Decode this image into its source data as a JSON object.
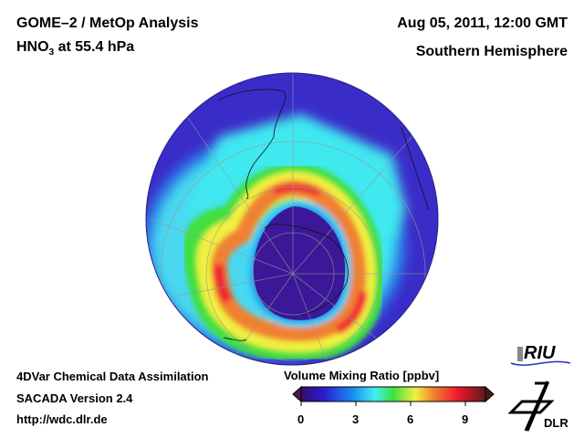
{
  "header": {
    "title_line1": "GOME–2 / MetOp Analysis",
    "species": "HNO",
    "species_subscript": "3",
    "level": " at 55.4 hPa",
    "datetime": "Aug 05, 2011, 12:00 GMT",
    "region": "Southern Hemisphere"
  },
  "footer": {
    "line1": "4DVar Chemical Data Assimilation",
    "line2": "SACADA Version 2.4",
    "line3": "http://wdc.dlr.de"
  },
  "colorbar": {
    "title": "Volume Mixing Ratio [ppbv]",
    "ticks": [
      "0",
      "3",
      "6",
      "9"
    ],
    "range": [
      0,
      10
    ],
    "colors": [
      "#3a0a6a",
      "#2a1cd0",
      "#1a8cf0",
      "#40f0f0",
      "#40e040",
      "#f0f040",
      "#f08030",
      "#f01830",
      "#5a1a1a"
    ]
  },
  "logos": {
    "riu": "RIU",
    "dlr": "DLR"
  }
}
